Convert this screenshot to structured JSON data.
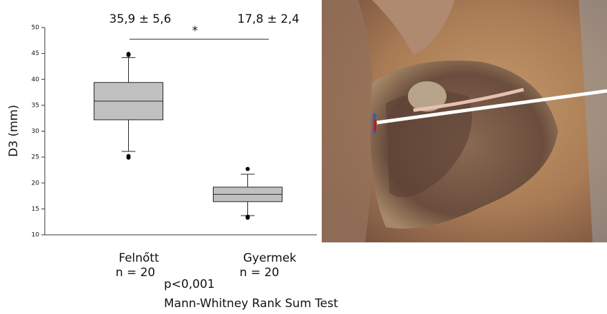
{
  "chart_data": {
    "type": "box",
    "y_label": "D3 (mm)",
    "categories": [
      "Felnőtt",
      "Gyermek"
    ],
    "n_labels": [
      "n = 20",
      "n = 20"
    ],
    "boxes": [
      {
        "low": 26.1,
        "q1": 32.2,
        "median": 35.8,
        "q3": 39.4,
        "high": 44.2,
        "outliers": [
          44.9,
          44.7,
          25.2,
          24.9
        ]
      },
      {
        "low": 13.7,
        "q1": 16.4,
        "median": 17.8,
        "q3": 19.2,
        "high": 21.7,
        "outliers": [
          22.7,
          13.5,
          13.3
        ]
      }
    ],
    "color": "#c0c0c0",
    "ylim": [
      10,
      50
    ],
    "yticks": [
      10,
      15,
      20,
      25,
      30,
      35,
      40,
      45,
      50
    ],
    "group_stats": [
      "35,9 ± 5,6",
      "17,8 ± 2,4"
    ],
    "significance": "*",
    "p_value": "p<0,001",
    "test": "Mann-Whitney Rank Sum Test"
  }
}
